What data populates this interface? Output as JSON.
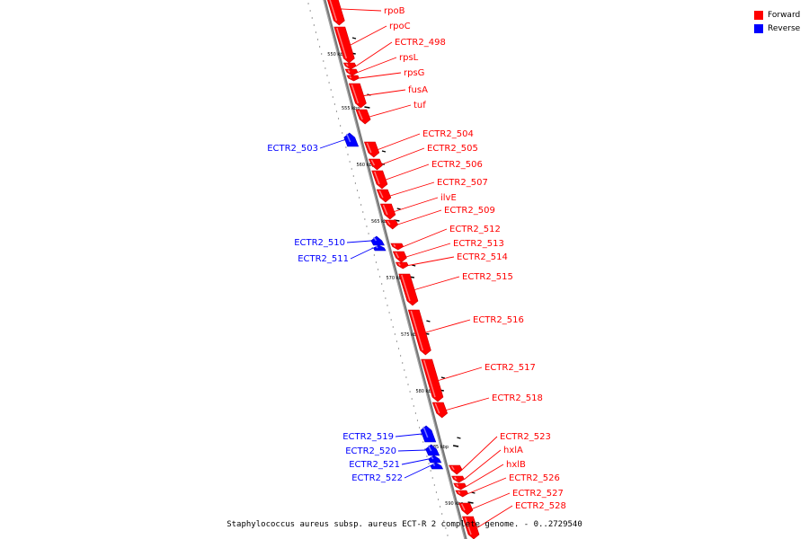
{
  "legend": {
    "forward_label": "Forward",
    "reverse_label": "Reverse",
    "forward_color": "#ff0000",
    "reverse_color": "#0000ff"
  },
  "caption": "Staphylococcus aureus subsp. aureus ECT-R 2 complete genome. - 0..2729540",
  "ticks": [
    "550 kbp",
    "555 kbp",
    "560 kbp",
    "565 kbp",
    "570 kbp",
    "575 kbp",
    "580 kbp",
    "585 kbp",
    "590 kbp"
  ],
  "genes": [
    {
      "name": "rpoB",
      "strand": "forward"
    },
    {
      "name": "rpoC",
      "strand": "forward"
    },
    {
      "name": "ECTR2_498",
      "strand": "forward"
    },
    {
      "name": "rpsL",
      "strand": "forward"
    },
    {
      "name": "rpsG",
      "strand": "forward"
    },
    {
      "name": "fusA",
      "strand": "forward"
    },
    {
      "name": "tuf",
      "strand": "forward"
    },
    {
      "name": "ECTR2_503",
      "strand": "reverse"
    },
    {
      "name": "ECTR2_504",
      "strand": "forward"
    },
    {
      "name": "ECTR2_505",
      "strand": "forward"
    },
    {
      "name": "ECTR2_506",
      "strand": "forward"
    },
    {
      "name": "ECTR2_507",
      "strand": "forward"
    },
    {
      "name": "ilvE",
      "strand": "forward"
    },
    {
      "name": "ECTR2_509",
      "strand": "forward"
    },
    {
      "name": "ECTR2_510",
      "strand": "reverse"
    },
    {
      "name": "ECTR2_511",
      "strand": "reverse"
    },
    {
      "name": "ECTR2_512",
      "strand": "forward"
    },
    {
      "name": "ECTR2_513",
      "strand": "forward"
    },
    {
      "name": "ECTR2_514",
      "strand": "forward"
    },
    {
      "name": "ECTR2_515",
      "strand": "forward"
    },
    {
      "name": "ECTR2_516",
      "strand": "forward"
    },
    {
      "name": "ECTR2_517",
      "strand": "forward"
    },
    {
      "name": "ECTR2_518",
      "strand": "forward"
    },
    {
      "name": "ECTR2_519",
      "strand": "reverse"
    },
    {
      "name": "ECTR2_520",
      "strand": "reverse"
    },
    {
      "name": "ECTR2_521",
      "strand": "reverse"
    },
    {
      "name": "ECTR2_522",
      "strand": "reverse"
    },
    {
      "name": "ECTR2_523",
      "strand": "forward"
    },
    {
      "name": "hxlA",
      "strand": "forward"
    },
    {
      "name": "hxlB",
      "strand": "forward"
    },
    {
      "name": "ECTR2_526",
      "strand": "forward"
    },
    {
      "name": "ECTR2_527",
      "strand": "forward"
    },
    {
      "name": "ECTR2_528",
      "strand": "forward"
    }
  ]
}
